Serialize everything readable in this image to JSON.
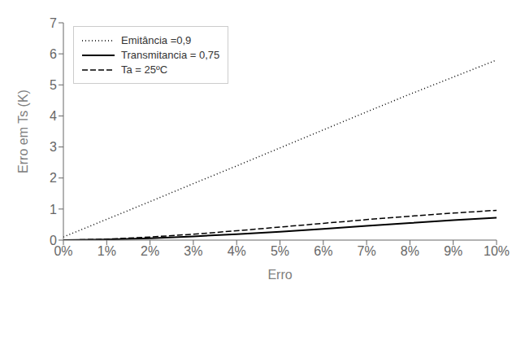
{
  "chart_data": {
    "type": "line",
    "xlabel": "Erro",
    "ylabel": "Erro em Ts (K)",
    "x": [
      0.0,
      0.01,
      0.02,
      0.03,
      0.04,
      0.05,
      0.06,
      0.07,
      0.08,
      0.09,
      0.1
    ],
    "xlim": [
      0,
      0.1
    ],
    "xticks": [
      {
        "value": 0.0,
        "label": "0%"
      },
      {
        "value": 0.01,
        "label": "1%"
      },
      {
        "value": 0.02,
        "label": "2%"
      },
      {
        "value": 0.03,
        "label": "3%"
      },
      {
        "value": 0.04,
        "label": "4%"
      },
      {
        "value": 0.05,
        "label": "5%"
      },
      {
        "value": 0.06,
        "label": "6%"
      },
      {
        "value": 0.07,
        "label": "7%"
      },
      {
        "value": 0.08,
        "label": "8%"
      },
      {
        "value": 0.09,
        "label": "9%"
      },
      {
        "value": 0.1,
        "label": "10%"
      }
    ],
    "ylim": [
      0,
      7
    ],
    "yticks": [
      0,
      1,
      2,
      3,
      4,
      5,
      6,
      7
    ],
    "grid": false,
    "legend": "upper left",
    "series": [
      {
        "name": "Emitância =0,9",
        "color": "#000000",
        "line_style": "dotted",
        "values": [
          0.1,
          0.67,
          1.24,
          1.82,
          2.39,
          2.97,
          3.55,
          4.13,
          4.7,
          5.25,
          5.8
        ]
      },
      {
        "name": "Transmitancia = 0,75",
        "color": "#000000",
        "line_style": "solid",
        "values": [
          0.0,
          0.02,
          0.06,
          0.12,
          0.19,
          0.27,
          0.36,
          0.46,
          0.55,
          0.64,
          0.72
        ]
      },
      {
        "name": "Ta = 25ºC",
        "color": "#000000",
        "line_style": "dashed",
        "values": [
          0.0,
          0.03,
          0.1,
          0.19,
          0.3,
          0.42,
          0.54,
          0.66,
          0.77,
          0.87,
          0.96
        ]
      }
    ]
  }
}
